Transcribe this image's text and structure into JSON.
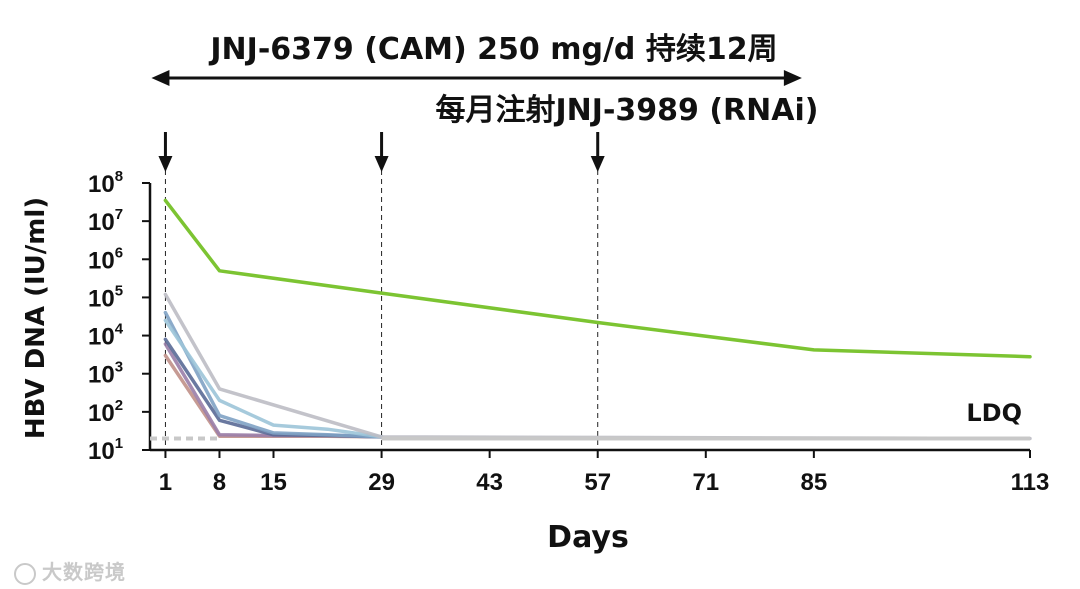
{
  "chart_data": {
    "type": "line",
    "title_top": "JNJ-6379 (CAM) 250 mg/d 持续12周",
    "title_second": "每月注射JNJ-3989 (RNAi)",
    "xlabel": "Days",
    "ylabel": "HBV DNA (IU/ml)",
    "x_ticks": [
      1,
      8,
      15,
      29,
      43,
      57,
      71,
      85,
      113
    ],
    "x_tick_labels": [
      "1",
      "8",
      "15",
      "29",
      "43",
      "57",
      "71",
      "85",
      "113"
    ],
    "y_ticks": [
      {
        "base": "10",
        "exp": "1",
        "value": 10
      },
      {
        "base": "10",
        "exp": "2",
        "value": 100
      },
      {
        "base": "10",
        "exp": "3",
        "value": 1000
      },
      {
        "base": "10",
        "exp": "4",
        "value": 10000
      },
      {
        "base": "10",
        "exp": "5",
        "value": 100000
      },
      {
        "base": "10",
        "exp": "6",
        "value": 1000000
      },
      {
        "base": "10",
        "exp": "7",
        "value": 10000000
      },
      {
        "base": "10",
        "exp": "8",
        "value": 100000000
      }
    ],
    "y_scale": "log",
    "xlim": [
      -1,
      113
    ],
    "ylim": [
      10,
      100000000
    ],
    "injection_days": [
      1,
      29,
      57
    ],
    "cam_treatment_days": [
      1,
      85
    ],
    "ldq_label": "LDQ",
    "ldq_value": 20,
    "series": [
      {
        "color": "#7cc432",
        "points": [
          [
            1,
            35000000
          ],
          [
            8,
            500000
          ],
          [
            29,
            130000
          ],
          [
            57,
            22000
          ],
          [
            85,
            4200
          ],
          [
            113,
            2800
          ]
        ]
      },
      {
        "color": "#bcbcc4",
        "points": [
          [
            1,
            120000
          ],
          [
            8,
            400
          ],
          [
            29,
            22
          ],
          [
            113,
            20
          ]
        ]
      },
      {
        "color": "#9cc4d8",
        "points": [
          [
            1,
            25000
          ],
          [
            8,
            200
          ],
          [
            15,
            45
          ],
          [
            22,
            35
          ],
          [
            29,
            22
          ]
        ]
      },
      {
        "color": "#7fa2c4",
        "points": [
          [
            1,
            40000
          ],
          [
            8,
            80
          ],
          [
            15,
            28
          ],
          [
            22,
            25
          ],
          [
            29,
            22
          ]
        ]
      },
      {
        "color": "#5a6a96",
        "points": [
          [
            1,
            8000
          ],
          [
            8,
            60
          ],
          [
            15,
            25
          ],
          [
            22,
            24
          ],
          [
            29,
            22
          ]
        ]
      },
      {
        "color": "#9a7ea8",
        "points": [
          [
            1,
            6000
          ],
          [
            8,
            25
          ],
          [
            15,
            24
          ],
          [
            22,
            24
          ],
          [
            29,
            22
          ]
        ]
      },
      {
        "color": "#c09088",
        "points": [
          [
            1,
            3000
          ],
          [
            8,
            23
          ],
          [
            15,
            23
          ],
          [
            22,
            23
          ],
          [
            29,
            22
          ]
        ]
      }
    ]
  },
  "watermark": "大数跨境"
}
